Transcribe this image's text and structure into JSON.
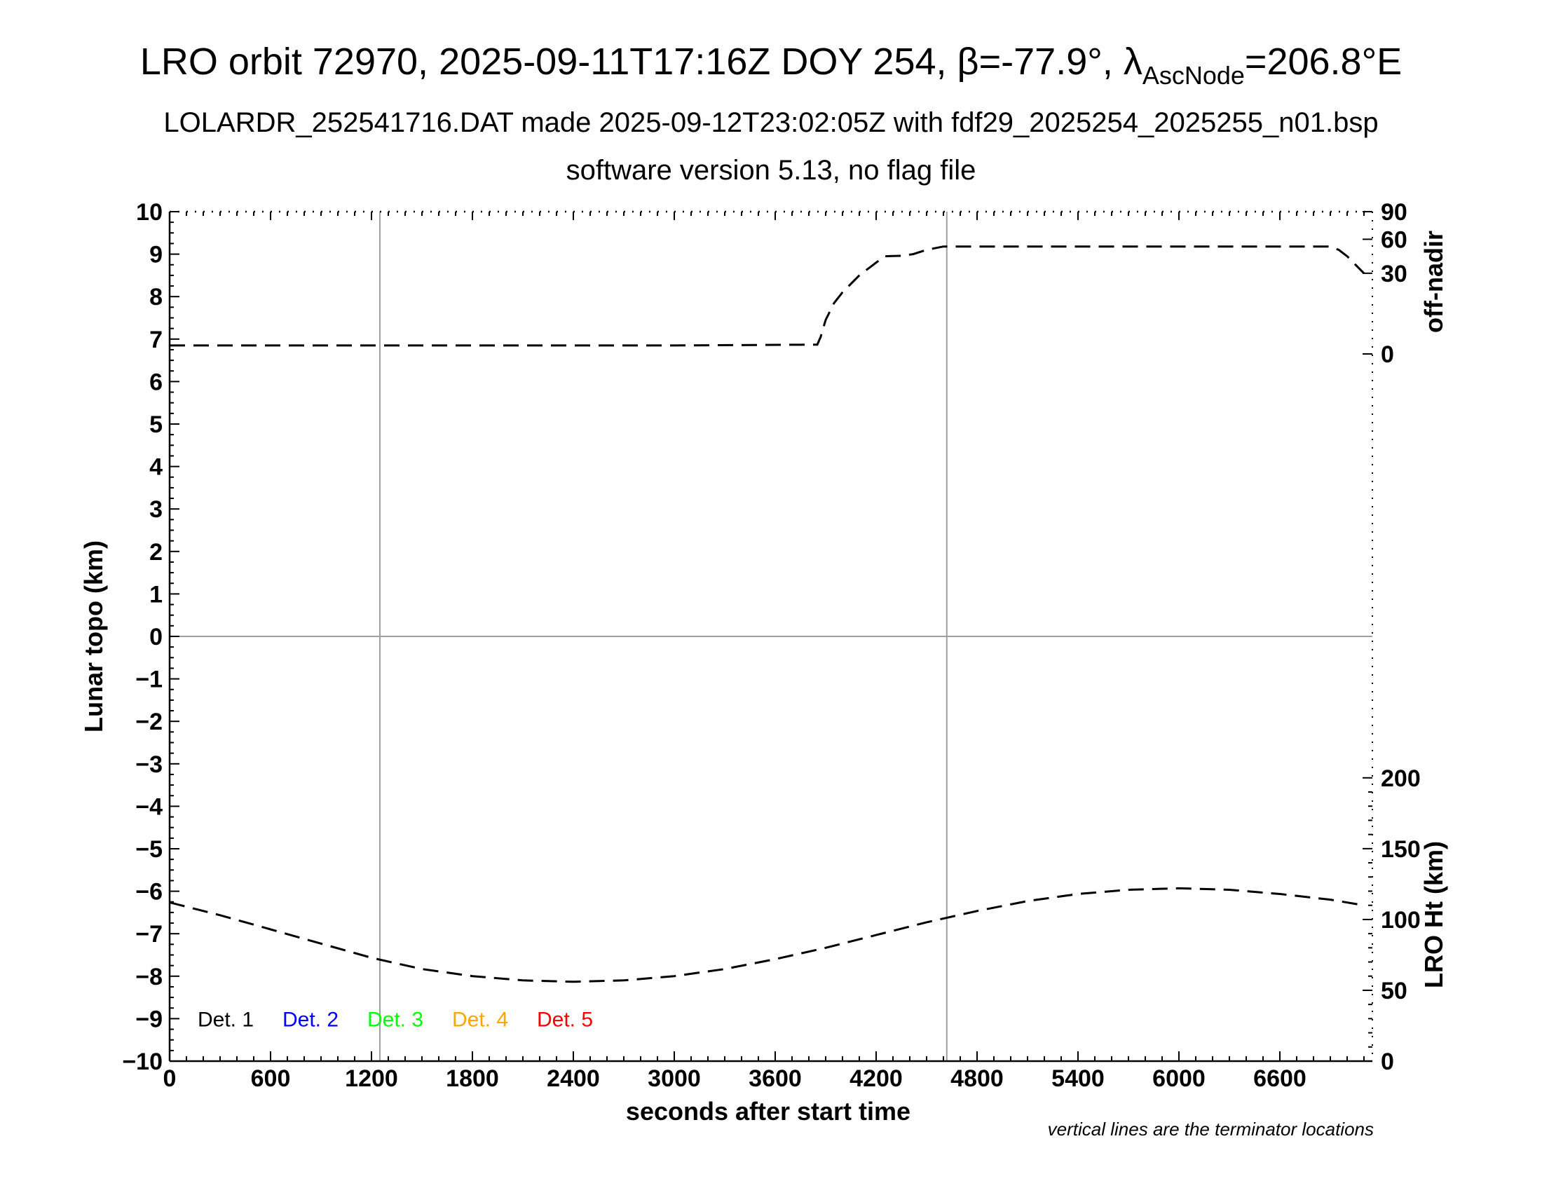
{
  "chart_data": {
    "type": "line",
    "title_parts": [
      "LRO orbit 72970, 2025-09-11T17:16Z DOY 254, ",
      "β",
      "=-77.9°, ",
      "λ",
      "AscNode",
      "=206.8°E"
    ],
    "subtitle": "LOLARDR_252541716.DAT made 2025-09-12T23:02:05Z with fdf29_2025254_2025255_n01.bsp",
    "subtitle2": "software version 5.13, no flag file",
    "xlabel": "seconds after start time",
    "ylabel": "Lunar topo (km)",
    "y2_top_label": "off-nadir",
    "y2_bottom_label": "LRO Ht (km)",
    "note": "vertical lines are the terminator locations",
    "xlim": [
      0,
      7150
    ],
    "ylim": [
      -10,
      10
    ],
    "x_ticks": [
      0,
      600,
      1200,
      1800,
      2400,
      3000,
      3600,
      4200,
      4800,
      5400,
      6000,
      6600
    ],
    "x_tick_labels": [
      "0",
      "600",
      "1200",
      "1800",
      "2400",
      "3000",
      "3600",
      "4200",
      "4800",
      "5400",
      "6000",
      "6600"
    ],
    "y_ticks": [
      10,
      9,
      8,
      7,
      6,
      5,
      4,
      3,
      2,
      1,
      0,
      -1,
      -2,
      -3,
      -4,
      -5,
      -6,
      -7,
      -8,
      -9,
      -10
    ],
    "y_tick_labels": [
      "10",
      "9",
      "8",
      "7",
      "6",
      "5",
      "4",
      "3",
      "2",
      "1",
      "0",
      "−1",
      "−2",
      "−3",
      "−4",
      "−5",
      "−6",
      "−7",
      "−8",
      "−9",
      "−10"
    ],
    "off_nadir_axis": {
      "ticks": [
        {
          "value": 90,
          "label": "90",
          "topo": 10
        },
        {
          "value": 60,
          "label": "60",
          "topo": 9.35
        },
        {
          "value": 30,
          "label": "30",
          "topo": 8.55
        },
        {
          "value": 0,
          "label": "0",
          "topo": 6.65
        }
      ]
    },
    "height_axis": {
      "range": [
        0,
        200
      ],
      "topo_range": [
        -10,
        -3.33
      ],
      "ticks": [
        200,
        150,
        100,
        50,
        0
      ],
      "tick_labels": [
        "200",
        "150",
        "100",
        "50",
        "0"
      ]
    },
    "terminator_x": [
      1250,
      4620
    ],
    "zero_line_y": 0,
    "series": [
      {
        "name": "off-nadir",
        "style": "dashed",
        "x": [
          0,
          1000,
          2000,
          3000,
          3850,
          3870,
          3900,
          3950,
          4000,
          4100,
          4200,
          4250,
          4350,
          4420,
          4500,
          4600,
          5000,
          6000,
          6800,
          6900,
          6950,
          7000,
          7050,
          7100
        ],
        "y": [
          6.85,
          6.85,
          6.85,
          6.85,
          6.87,
          7.05,
          7.45,
          7.85,
          8.1,
          8.5,
          8.8,
          8.95,
          8.96,
          9.0,
          9.1,
          9.18,
          9.18,
          9.18,
          9.18,
          9.18,
          9.1,
          8.95,
          8.75,
          8.55
        ]
      },
      {
        "name": "LRO Ht",
        "style": "dashed",
        "x": [
          0,
          300,
          600,
          900,
          1200,
          1500,
          1800,
          2100,
          2400,
          2700,
          3000,
          3300,
          3600,
          3900,
          4200,
          4500,
          4800,
          5100,
          5400,
          5700,
          6000,
          6300,
          6600,
          6900,
          7100
        ],
        "y": [
          112,
          103,
          93,
          83,
          73,
          65,
          60,
          57,
          56,
          57,
          60,
          65,
          72,
          80,
          89,
          98,
          106,
          113,
          118,
          121,
          122,
          121,
          118,
          114,
          110
        ]
      }
    ],
    "legend": [
      {
        "label": "Det. 1",
        "color": "#000000"
      },
      {
        "label": "Det. 2",
        "color": "#0000ff"
      },
      {
        "label": "Det. 3",
        "color": "#00ff00"
      },
      {
        "label": "Det. 4",
        "color": "#ffa500"
      },
      {
        "label": "Det. 5",
        "color": "#ff0000"
      }
    ],
    "legend_placement": "bottom-left",
    "grid_color": "#a0a0a0"
  }
}
